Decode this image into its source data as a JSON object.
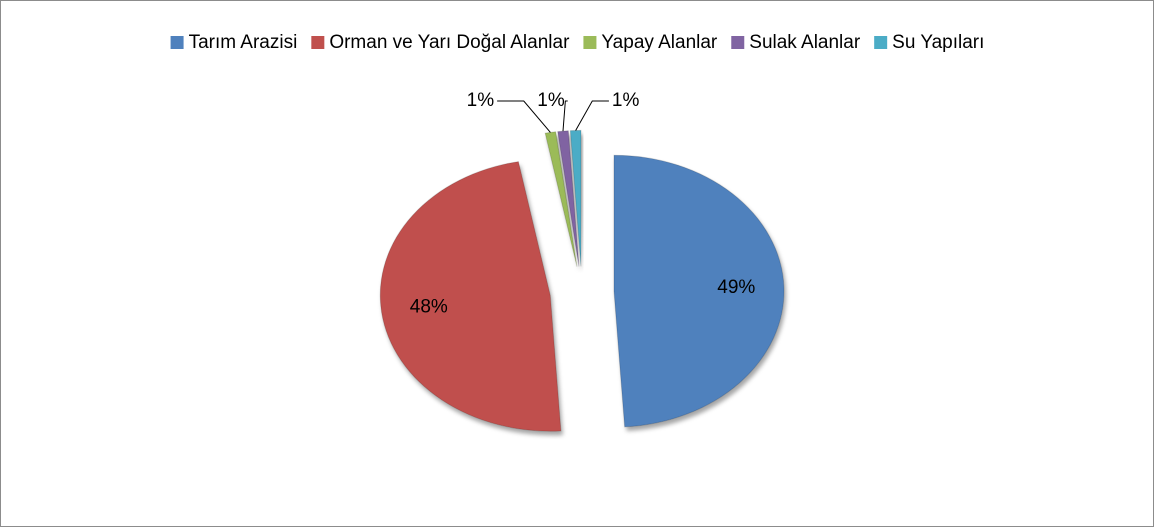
{
  "chart_data": {
    "type": "pie",
    "categories": [
      "Tarım Arazisi",
      "Orman ve Yarı Doğal Alanlar",
      "Yapay Alanlar",
      "Sulak Alanlar",
      "Su Yapıları"
    ],
    "values": [
      49,
      48,
      1,
      1,
      1
    ],
    "value_labels": [
      "49%",
      "48%",
      "1%",
      "1%",
      "1%"
    ],
    "colors": [
      "#4f81bd",
      "#c0504d",
      "#9bbb59",
      "#8064a2",
      "#4bacc6"
    ],
    "legend": "top"
  }
}
